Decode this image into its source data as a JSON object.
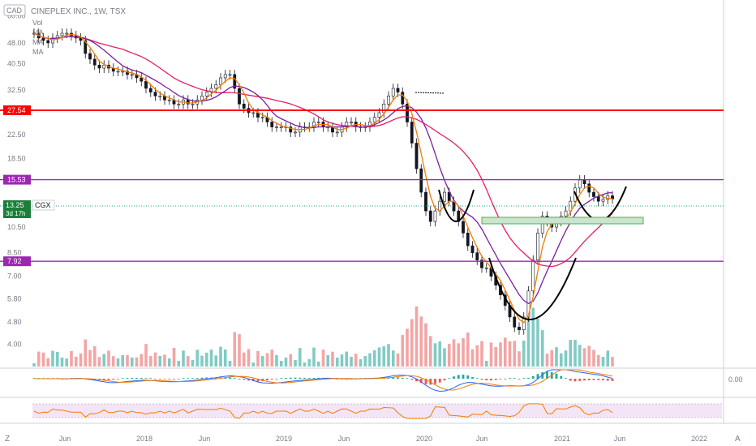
{
  "header": {
    "currency": "CAD",
    "symbol_line": "CINEPLEX INC., 1W, TSX",
    "indicators": [
      "Vol",
      "MA",
      "MA",
      "MA"
    ]
  },
  "chart_data": {
    "type": "candlestick",
    "symbol": "CGX",
    "interval": "1W",
    "exchange": "TSX",
    "price_axis_labels": [
      "60.00",
      "48.00",
      "40.50",
      "32.50",
      "22.50",
      "18.50",
      "10.50",
      "8.50",
      "7.00",
      "5.80",
      "4.80",
      "4.00"
    ],
    "time_axis_labels": [
      "Jun",
      "2018",
      "Jun",
      "2019",
      "Jun",
      "2020",
      "Jun",
      "2021",
      "Jun",
      "2022"
    ],
    "horizontal_levels": [
      {
        "value": 27.54,
        "label": "27.54",
        "color": "#ff0000"
      },
      {
        "value": 15.53,
        "label": "15.53",
        "color": "#9c27b0"
      },
      {
        "value": 7.92,
        "label": "7.92",
        "color": "#9c27b0"
      }
    ],
    "last_price": {
      "value": "13.25",
      "ticker": "CGX",
      "countdown": "3d 17h"
    },
    "macd_zero_label": "0.00",
    "close_series": [
      52,
      50,
      49,
      48,
      50,
      51,
      52,
      52,
      51,
      50,
      49,
      44,
      42,
      40,
      39,
      40,
      39,
      38,
      38,
      38,
      37,
      37,
      36,
      35,
      33,
      32,
      31,
      31,
      30,
      30,
      29,
      29,
      30,
      29,
      29,
      30,
      31,
      32,
      33,
      34,
      36,
      37,
      37,
      33,
      29,
      28,
      27,
      27,
      26,
      26,
      25,
      24,
      24,
      24,
      24,
      23,
      23,
      24,
      24,
      24,
      25,
      25,
      24,
      24,
      23,
      23,
      24,
      25,
      25,
      24,
      24,
      24,
      25,
      26,
      27,
      29,
      31,
      33,
      32,
      29,
      25,
      21,
      17,
      14,
      12,
      11,
      12,
      13,
      14,
      13,
      12,
      11,
      10,
      9,
      8.5,
      8,
      7.5,
      7.5,
      7,
      6.5,
      6,
      5.5,
      5,
      4.6,
      4.5,
      5,
      6.2,
      8,
      10,
      11.5,
      11,
      10.5,
      11,
      11.5,
      12,
      13,
      14.5,
      15.5,
      15,
      14,
      13.5,
      13,
      13.2,
      13.6,
      13.25
    ],
    "ma_fast_color": "#f57c00",
    "ma_mid_color": "#7b1fa2",
    "ma_slow_color": "#e91e63",
    "up_color": "#26a69a",
    "down_color": "#ef5350",
    "rsi_line_color": "#f57c00",
    "rsi_band_color": "#f3e5f5"
  },
  "corner": {
    "left": "Z",
    "right": "A"
  }
}
